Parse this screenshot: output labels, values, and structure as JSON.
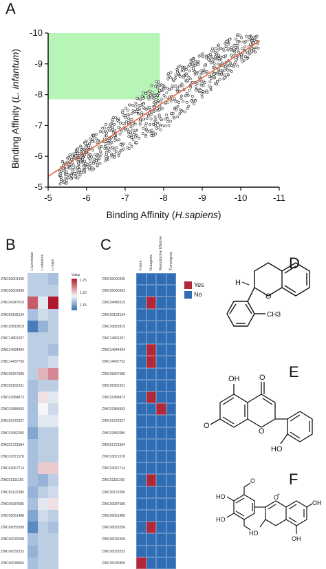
{
  "panels": {
    "a": "A",
    "b": "B",
    "c": "C",
    "d": "D",
    "e": "E",
    "f": "F"
  },
  "chart_data": [
    {
      "type": "scatter",
      "xlabel_prefix": "Binding Affinity (",
      "xlabel_species": "H.sapiens",
      "xlabel_suffix": ")",
      "ylabel_prefix": "Binding Affinity (",
      "ylabel_species": "L. infantum",
      "ylabel_suffix": ")",
      "xlim": [
        -5,
        -11
      ],
      "ylim": [
        -5,
        -10
      ],
      "xticks": [
        "-5",
        "-6",
        "-7",
        "-8",
        "-9",
        "-10",
        "-11"
      ],
      "yticks": [
        "-5",
        "-6",
        "-7",
        "-8",
        "-9",
        "-10"
      ],
      "highlight_region": {
        "x": [
          -5,
          -7.9
        ],
        "y": [
          -7.85,
          -10
        ],
        "color": "#b6f5b6"
      },
      "fit_line": {
        "x": [
          -5,
          -10.5
        ],
        "y": [
          -5.35,
          -9.75
        ],
        "color": "#e8643c"
      }
    },
    {
      "type": "heatmap",
      "columns": [
        "L.tarentolae",
        "L.infantum",
        "L.major"
      ],
      "rows": [
        "ZINC00001435",
        "ZINC00003436",
        "ZINC04347519",
        "ZINC00128134",
        "ZINC20815819",
        "ZINC14891207",
        "ZINC14994424",
        "ZINC14437750",
        "ZINC05257686",
        "ZINC05252331",
        "ZINC01884873",
        "ZINC01884553",
        "ZINC01973327",
        "ZINC01952206",
        "ZINC01721594",
        "ZINC01871578",
        "ZINC02067714",
        "ZINC01101160",
        "ZINC00122286",
        "ZINC00087685",
        "ZINC00051488",
        "ZINC00053258",
        "ZINC00032208",
        "ZINC00032253",
        "ZINC00035856"
      ],
      "values": [
        [
          1.17,
          1.17,
          1.16
        ],
        [
          1.17,
          1.17,
          1.17
        ],
        [
          1.27,
          1.19,
          1.3
        ],
        [
          1.16,
          1.18,
          1.17
        ],
        [
          1.11,
          1.15,
          1.17
        ],
        [
          1.17,
          1.17,
          1.17
        ],
        [
          1.17,
          1.17,
          1.16
        ],
        [
          1.17,
          1.17,
          1.18
        ],
        [
          1.17,
          1.23,
          1.25
        ],
        [
          1.16,
          1.17,
          1.17
        ],
        [
          1.16,
          1.21,
          1.19
        ],
        [
          1.16,
          1.2,
          1.18
        ],
        [
          1.16,
          1.19,
          1.19
        ],
        [
          1.14,
          1.17,
          1.17
        ],
        [
          1.16,
          1.17,
          1.17
        ],
        [
          1.16,
          1.17,
          1.17
        ],
        [
          1.16,
          1.22,
          1.22
        ],
        [
          1.16,
          1.15,
          1.17
        ],
        [
          1.15,
          1.17,
          1.18
        ],
        [
          1.16,
          1.19,
          1.21
        ],
        [
          1.14,
          1.18,
          1.17
        ],
        [
          1.12,
          1.17,
          1.16
        ],
        [
          1.16,
          1.17,
          1.17
        ],
        [
          1.15,
          1.17,
          1.17
        ],
        [
          1.16,
          1.17,
          1.17
        ]
      ],
      "legend_title": "Value",
      "legend_ticks": [
        "1.25",
        "1.20",
        "1.15"
      ]
    },
    {
      "type": "heatmap",
      "columns": [
        "Irritant",
        "Mutagenic",
        "Reproductive Effective",
        "Tumorigenic"
      ],
      "rows": [
        "ZINC00000435",
        "ZINC00000432",
        "ZINC04845519",
        "ZINC00128134",
        "ZINC20815819",
        "ZINC14891207",
        "ZINC14944424",
        "ZINC14437752",
        "ZINC05257686",
        "ZINC05252331",
        "ZINC01884873",
        "ZINC01884553",
        "ZINC01973327",
        "ZINC01852086",
        "ZINC01721594",
        "ZINC01871578",
        "ZINC02067714",
        "ZINC01101160",
        "ZINC00122286",
        "ZINC00087685",
        "ZINC00051488",
        "ZINC00053258",
        "ZINC00032208",
        "ZINC00033253",
        "ZINC00035856"
      ],
      "values": [
        [
          0,
          0,
          0,
          0
        ],
        [
          0,
          0,
          0,
          0
        ],
        [
          0,
          1,
          0,
          0
        ],
        [
          0,
          0,
          0,
          0
        ],
        [
          0,
          0,
          0,
          0
        ],
        [
          0,
          0,
          0,
          0
        ],
        [
          0,
          1,
          0,
          0
        ],
        [
          0,
          1,
          0,
          0
        ],
        [
          0,
          0,
          0,
          0
        ],
        [
          0,
          0,
          0,
          0
        ],
        [
          0,
          1,
          0,
          0
        ],
        [
          0,
          0,
          1,
          0
        ],
        [
          0,
          0,
          0,
          0
        ],
        [
          0,
          0,
          0,
          0
        ],
        [
          0,
          0,
          0,
          0
        ],
        [
          0,
          0,
          0,
          0
        ],
        [
          0,
          0,
          0,
          0
        ],
        [
          0,
          1,
          0,
          0
        ],
        [
          0,
          0,
          0,
          0
        ],
        [
          0,
          0,
          0,
          0
        ],
        [
          0,
          0,
          0,
          0
        ],
        [
          0,
          1,
          0,
          0
        ],
        [
          0,
          0,
          0,
          0
        ],
        [
          0,
          0,
          0,
          0
        ],
        [
          1,
          0,
          0,
          0
        ]
      ],
      "legend": [
        "Yes",
        "No"
      ],
      "colors": {
        "yes": "#b0283a",
        "no": "#2f6db5"
      }
    }
  ],
  "structures": {
    "d": {
      "labels": [
        "H",
        "O",
        "CH3"
      ]
    },
    "e": {
      "labels": [
        "OH",
        "O",
        "O",
        "O",
        "HO"
      ]
    },
    "f": {
      "labels": [
        "HO",
        "O",
        "HO",
        "O",
        "OH",
        "HO",
        "OH",
        "+"
      ]
    }
  }
}
